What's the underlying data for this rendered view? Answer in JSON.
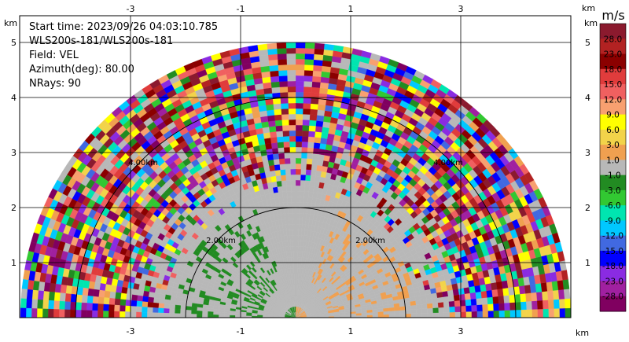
{
  "chart_data": {
    "type": "heatmap",
    "title_lines": [
      "Start time: 2023/09/26 04:03:10.785",
      "WLS200s-181/WLS200s-181",
      "Field: VEL",
      "Azimuth(deg): 80.00",
      "NRays: 90"
    ],
    "unit_label": "km",
    "x_ticks": [
      -3,
      -1,
      1,
      3
    ],
    "y_ticks": [
      1,
      2,
      3,
      4,
      5
    ],
    "xlim": [
      -5.6,
      5.6
    ],
    "ylim": [
      0,
      6.0
    ],
    "range_rings": [
      {
        "radius_km": 2,
        "label": "2.00km"
      },
      {
        "radius_km": 4,
        "label": "4.00km"
      }
    ],
    "max_range_km": 5.0,
    "colorbar": {
      "unit": "m/s",
      "labels": [
        "28.0",
        "23.0",
        "18.0",
        "15.0",
        "12.0",
        "9.0",
        "6.0",
        "3.0",
        "1.0",
        "-1.0",
        "-3.0",
        "-6.0",
        "-9.0",
        "-12.0",
        "-15.0",
        "-18.0",
        "-23.0",
        "-28.0"
      ],
      "colors": [
        "#8b1a2e",
        "#b22222",
        "#8b0000",
        "#e03c3c",
        "#f06060",
        "#f8a070",
        "#ffff00",
        "#f2d34a",
        "#f0a050",
        "#b8b8b8",
        "#228b22",
        "#32c832",
        "#00e5b0",
        "#00c8ff",
        "#4169e1",
        "#0000ff",
        "#8a2be2",
        "#a020a0",
        "#800060"
      ]
    },
    "near_field": {
      "noise_free_radius_km": 2.2,
      "positive_sector_color": "#f0a050",
      "negative_sector_color": "#228b22",
      "background_color": "#b8b8b8"
    }
  }
}
